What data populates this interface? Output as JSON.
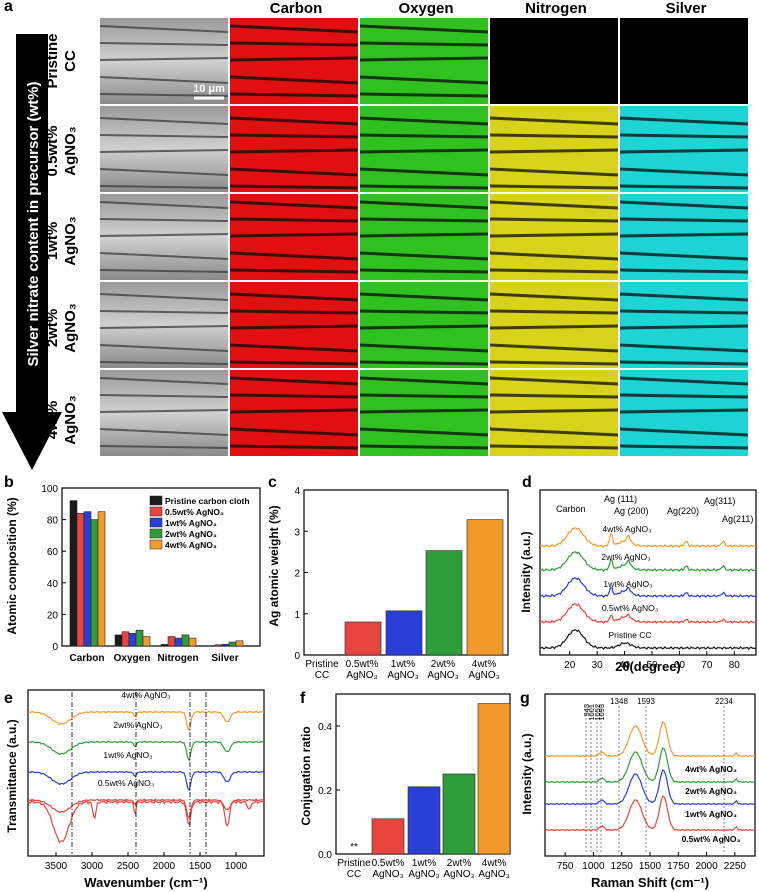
{
  "figure": {
    "panel_labels": {
      "a": "a",
      "b": "b",
      "c": "c",
      "d": "d",
      "e": "e",
      "f": "f",
      "g": "g"
    },
    "arrow_label": "Silver nitrate content in precursor (wt%)",
    "columns": [
      "Carbon",
      "Oxygen",
      "Nitrogen",
      "Silver"
    ],
    "rows": [
      {
        "line1": "Pristine",
        "line2": "CC"
      },
      {
        "line1": "0.5wt%",
        "line2": "AgNO₃"
      },
      {
        "line1": "1wt%",
        "line2": "AgNO₃"
      },
      {
        "line1": "2wt%",
        "line2": "AgNO₃"
      },
      {
        "line1": "4wt%",
        "line2": "AgNO₃"
      }
    ],
    "scale_bar": "10 μm",
    "colors": {
      "carbon": "#e01010",
      "oxygen": "#2fc11f",
      "nitrogen": "#d8d21a",
      "silver": "#1fd4d4",
      "black": "#1a1a1a",
      "red": "#e8453e",
      "blue": "#2a3fd8",
      "green": "#2e9e3a",
      "orange": "#f39a2b"
    }
  },
  "chart_data": [
    {
      "id": "b",
      "type": "bar",
      "title": "",
      "ylabel": "Atomic composition (%)",
      "xlabel": "",
      "ylim": [
        0,
        100
      ],
      "yticks": [
        "0",
        "20",
        "40",
        "60",
        "80",
        "100"
      ],
      "categories": [
        "Carbon",
        "Oxygen",
        "Nitrogen",
        "Silver"
      ],
      "series": [
        {
          "name": "Pristine carbon cloth",
          "values": [
            92,
            7,
            1,
            0
          ]
        },
        {
          "name": "0.5wt% AgNO₃",
          "values": [
            84,
            9,
            6,
            0.8
          ]
        },
        {
          "name": "1wt% AgNO₃",
          "values": [
            85,
            8,
            5,
            1.1
          ]
        },
        {
          "name": "2wt% AgNO₃",
          "values": [
            80,
            10,
            7,
            2.5
          ]
        },
        {
          "name": "4wt% AgNO₃",
          "values": [
            85,
            6,
            5,
            3.3
          ]
        }
      ]
    },
    {
      "id": "c",
      "type": "bar",
      "ylabel": "Ag atomic weight (%)",
      "ylim": [
        0,
        4
      ],
      "yticks": [
        "0",
        "1",
        "2",
        "3",
        "4"
      ],
      "categories": [
        [
          "Pristine",
          "CC"
        ],
        [
          "0.5wt%",
          "AgNO₃"
        ],
        [
          "1wt%",
          "AgNO₃"
        ],
        [
          "2wt%",
          "AgNO₃"
        ],
        [
          "4wt%",
          "AgNO₃"
        ]
      ],
      "values": [
        0,
        0.8,
        1.07,
        2.53,
        3.28
      ]
    },
    {
      "id": "d",
      "type": "line",
      "xlabel": "2θ(degree)",
      "ylabel": "Intensity (a.u.)",
      "xlim": [
        13,
        89
      ],
      "xticks": [
        "20",
        "30",
        "40",
        "50",
        "60",
        "70",
        "80"
      ],
      "peak_labels": [
        "Carbon",
        "Ag (111)",
        "Ag (200)",
        "Ag(220)",
        "Ag(311)",
        "Ag(211)"
      ],
      "series": [
        "Pristine CC",
        "0.5wt% AgNO₃",
        "1wt% AgNO₃",
        "2wt% AgNO₃",
        "4wt% AgNO₃"
      ]
    },
    {
      "id": "e",
      "type": "line",
      "xlabel": "Wavenumber (cm⁻¹)",
      "ylabel": "Transmittance (a.u.)",
      "xlim": [
        3800,
        600
      ],
      "xticks": [
        "3500",
        "3000",
        "2500",
        "2000",
        "1500",
        "1000"
      ],
      "series": [
        "4wt% AgNO₃",
        "2wt% AgNO₃",
        "1wt% AgNO₃",
        "0.5wt% AgNO₃"
      ]
    },
    {
      "id": "f",
      "type": "bar",
      "ylabel": "Conjugation ratio",
      "ylim": [
        0,
        0.5
      ],
      "yticks": [
        "0.0",
        "0.2",
        "0.4"
      ],
      "categories": [
        [
          "Pristine",
          "CC"
        ],
        [
          "0.5wt%",
          "AgNO₃"
        ],
        [
          "1wt%",
          "AgNO₃"
        ],
        [
          "2wt%",
          "AgNO₃"
        ],
        [
          "4wt%",
          "AgNO₃"
        ]
      ],
      "values": [
        0,
        0.11,
        0.21,
        0.25,
        0.47
      ],
      "annotation": "**"
    },
    {
      "id": "g",
      "type": "line",
      "xlabel": "Raman Shift (cm⁻¹)",
      "ylabel": "Intensity (a.u.)",
      "xlim": [
        550,
        2400
      ],
      "xticks": [
        "750",
        "1000",
        "1250",
        "1500",
        "1750",
        "2000",
        "2250"
      ],
      "peak_labels": [
        "943",
        "1001",
        "1052",
        "1093",
        "1348",
        "1593",
        "2234"
      ],
      "series": [
        "4wt% AgNO₃",
        "2wt% AgNO₃",
        "1wt% AgNO₃",
        "0.5wt% AgNO₃"
      ]
    }
  ]
}
